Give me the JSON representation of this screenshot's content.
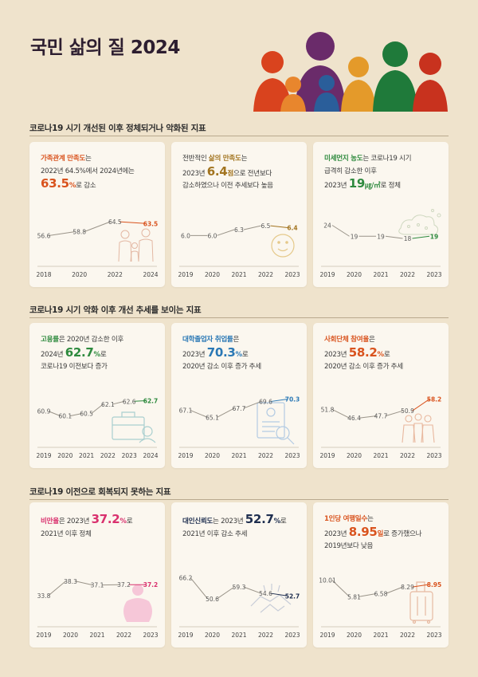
{
  "title": "국민 삶의 질 2024",
  "colors": {
    "orange": "#d9531e",
    "green": "#2e8a3e",
    "blue": "#2a78b5",
    "pink": "#d9316e",
    "navy": "#1e2e4f",
    "line": "#8f8a82"
  },
  "sections": [
    {
      "label": "코로나19 시기 개선된 이후 정체되거나 악화된 지표"
    },
    {
      "label": "코로나19 시기 악화 이후 개선 추세를 보이는 지표"
    },
    {
      "label": "코로나19 이전으로 회복되지 못하는 지표"
    }
  ],
  "cards": [
    {
      "key": "family",
      "color": "#d9531e",
      "hl": "가족관계 만족도",
      "t1": "는",
      "t2": "2022년 64.5%에서 2024년에는",
      "big": "63.5",
      "unit": "%",
      "tail": "로 감소",
      "icon": "family-icon"
    },
    {
      "key": "life",
      "color": "#a2741f",
      "pre": "전반적인 ",
      "hl": "삶의 만족도",
      "t1": "는",
      "t2pre": "2023년 ",
      "big": "6.4",
      "unit": "점",
      "tail": "으로 전년보다",
      "t3": "감소하였으나 이전 추세보다 높음",
      "icon": "smiley-icon"
    },
    {
      "key": "dust",
      "color": "#2e8a3e",
      "hl": "미세먼지 농도",
      "t1": "는 코로나19 시기",
      "t2": "급격히 감소한 이후",
      "t3pre": "2023년 ",
      "big": "19",
      "unit": "㎍/㎥",
      "tail": "로 정체",
      "icon": "dust-icon"
    },
    {
      "key": "employ",
      "color": "#2e8a3e",
      "hl": "고용률",
      "t1": "은 2020년 감소한 이후",
      "t2pre": "2024년 ",
      "big": "62.7",
      "unit": "%",
      "tail": "로",
      "t3": "코로나19 이전보다 증가",
      "icon": "briefcase-icon"
    },
    {
      "key": "grad",
      "color": "#2a78b5",
      "hl": "대학졸업자 취업률",
      "t1": "은",
      "t2pre": "2023년 ",
      "big": "70.3",
      "unit": "%",
      "tail": "로",
      "t3": "2020년 감소 이후 증가 추세",
      "icon": "resume-icon"
    },
    {
      "key": "social",
      "color": "#d9531e",
      "hl": "사회단체 참여율",
      "t1": "은",
      "t2pre": "2023년 ",
      "big": "58.2",
      "unit": "%",
      "tail": "로",
      "t3": "2020년 감소 이후 증가 추세",
      "icon": "group-icon"
    },
    {
      "key": "obese",
      "color": "#d9316e",
      "hl": "비만율",
      "t1": "은 2023년 ",
      "big": "37.2",
      "unit": "%",
      "tail": "로",
      "t2": "2021년 이후 정체",
      "icon": "body-icon"
    },
    {
      "key": "trust",
      "color": "#1e2e4f",
      "hl": "대인신뢰도",
      "t1": "는 2023년 ",
      "big": "52.7",
      "unit": "%",
      "tail": "로",
      "t2": "2021년 이후 감소 추세",
      "icon": "handshake-icon"
    },
    {
      "key": "travel",
      "color": "#d9531e",
      "hl": "1인당 여행일수",
      "t1": "는",
      "t2pre": "2023년 ",
      "big": "8.95",
      "unit": "일",
      "tail": "로 증가했으나",
      "t3": "2019년보다 낮음",
      "icon": "suitcase-icon"
    }
  ],
  "chart_data": [
    {
      "type": "line",
      "title": "가족관계 만족도",
      "x": [
        "2018",
        "2020",
        "2022",
        "2024"
      ],
      "values": [
        56.6,
        58.8,
        64.5,
        63.5
      ],
      "labels": [
        "56.6",
        "58.8",
        "64.5",
        "63.5"
      ],
      "ylim": [
        50,
        70
      ]
    },
    {
      "type": "line",
      "title": "삶의 만족도",
      "x": [
        "2019",
        "2020",
        "2021",
        "2022",
        "2023"
      ],
      "values": [
        6.0,
        6.0,
        6.3,
        6.5,
        6.4
      ],
      "labels": [
        "6.0",
        "6.0",
        "6.3",
        "6.5",
        "6.4"
      ],
      "ylim": [
        5.4,
        7.2
      ]
    },
    {
      "type": "line",
      "title": "미세먼지 농도",
      "x": [
        "2019",
        "2020",
        "2021",
        "2022",
        "2023"
      ],
      "values": [
        24,
        19,
        19,
        18,
        19
      ],
      "labels": [
        "24",
        "19",
        "19",
        "18",
        "19"
      ],
      "ylim": [
        14,
        30
      ]
    },
    {
      "type": "line",
      "title": "고용률",
      "x": [
        "2019",
        "2020",
        "2021",
        "2022",
        "2023",
        "2024"
      ],
      "values": [
        60.9,
        60.1,
        60.5,
        62.1,
        62.6,
        62.7
      ],
      "labels": [
        "60.9",
        "60.1",
        "60.5",
        "62.1",
        "62.6",
        "62.7"
      ],
      "ylim": [
        58,
        64
      ]
    },
    {
      "type": "line",
      "title": "대학졸업자 취업률",
      "x": [
        "2019",
        "2020",
        "2021",
        "2022",
        "2023"
      ],
      "values": [
        67.1,
        65.1,
        67.7,
        69.6,
        70.3
      ],
      "labels": [
        "67.1",
        "65.1",
        "67.7",
        "69.6",
        "70.3"
      ],
      "ylim": [
        62,
        72
      ]
    },
    {
      "type": "line",
      "title": "사회단체 참여율",
      "x": [
        "2019",
        "2020",
        "2021",
        "2022",
        "2023"
      ],
      "values": [
        51.8,
        46.4,
        47.7,
        50.9,
        58.2
      ],
      "labels": [
        "51.8",
        "46.4",
        "47.7",
        "50.9",
        "58.2"
      ],
      "ylim": [
        40,
        62
      ]
    },
    {
      "type": "line",
      "title": "비만율",
      "x": [
        "2019",
        "2020",
        "2021",
        "2022",
        "2023"
      ],
      "values": [
        33.8,
        38.3,
        37.1,
        37.2,
        37.2
      ],
      "labels": [
        "33.8",
        "38.3",
        "37.1",
        "37.2",
        "37.2"
      ],
      "ylim": [
        30,
        41
      ]
    },
    {
      "type": "line",
      "title": "대인신뢰도",
      "x": [
        "2019",
        "2020",
        "2021",
        "2022",
        "2023"
      ],
      "values": [
        66.2,
        50.6,
        59.3,
        54.6,
        52.7
      ],
      "labels": [
        "66.2",
        "50.6",
        "59.3",
        "54.6",
        "52.7"
      ],
      "ylim": [
        44,
        70
      ]
    },
    {
      "type": "line",
      "title": "1인당 여행일수",
      "x": [
        "2019",
        "2020",
        "2021",
        "2022",
        "2023"
      ],
      "values": [
        10.01,
        5.81,
        6.58,
        8.29,
        8.95
      ],
      "labels": [
        "10.01",
        "5.81",
        "6.58",
        "8.29",
        "8.95"
      ],
      "ylim": [
        3,
        12
      ]
    }
  ]
}
